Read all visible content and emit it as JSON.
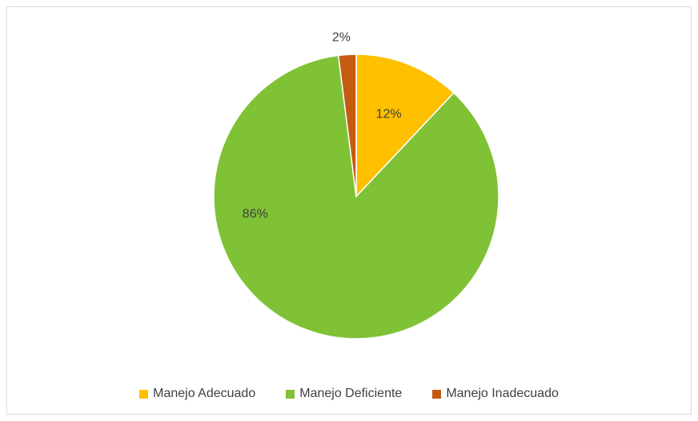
{
  "chart_data": {
    "type": "pie",
    "title": "",
    "categories": [
      "Manejo Adecuado",
      "Manejo Deficiente",
      "Manejo Inadecuado"
    ],
    "values": [
      12,
      86,
      2
    ],
    "labels": [
      "12%",
      "86%",
      "2%"
    ],
    "colors": [
      "#FFC000",
      "#7FC236",
      "#C55A11"
    ],
    "legend_position": "bottom"
  }
}
